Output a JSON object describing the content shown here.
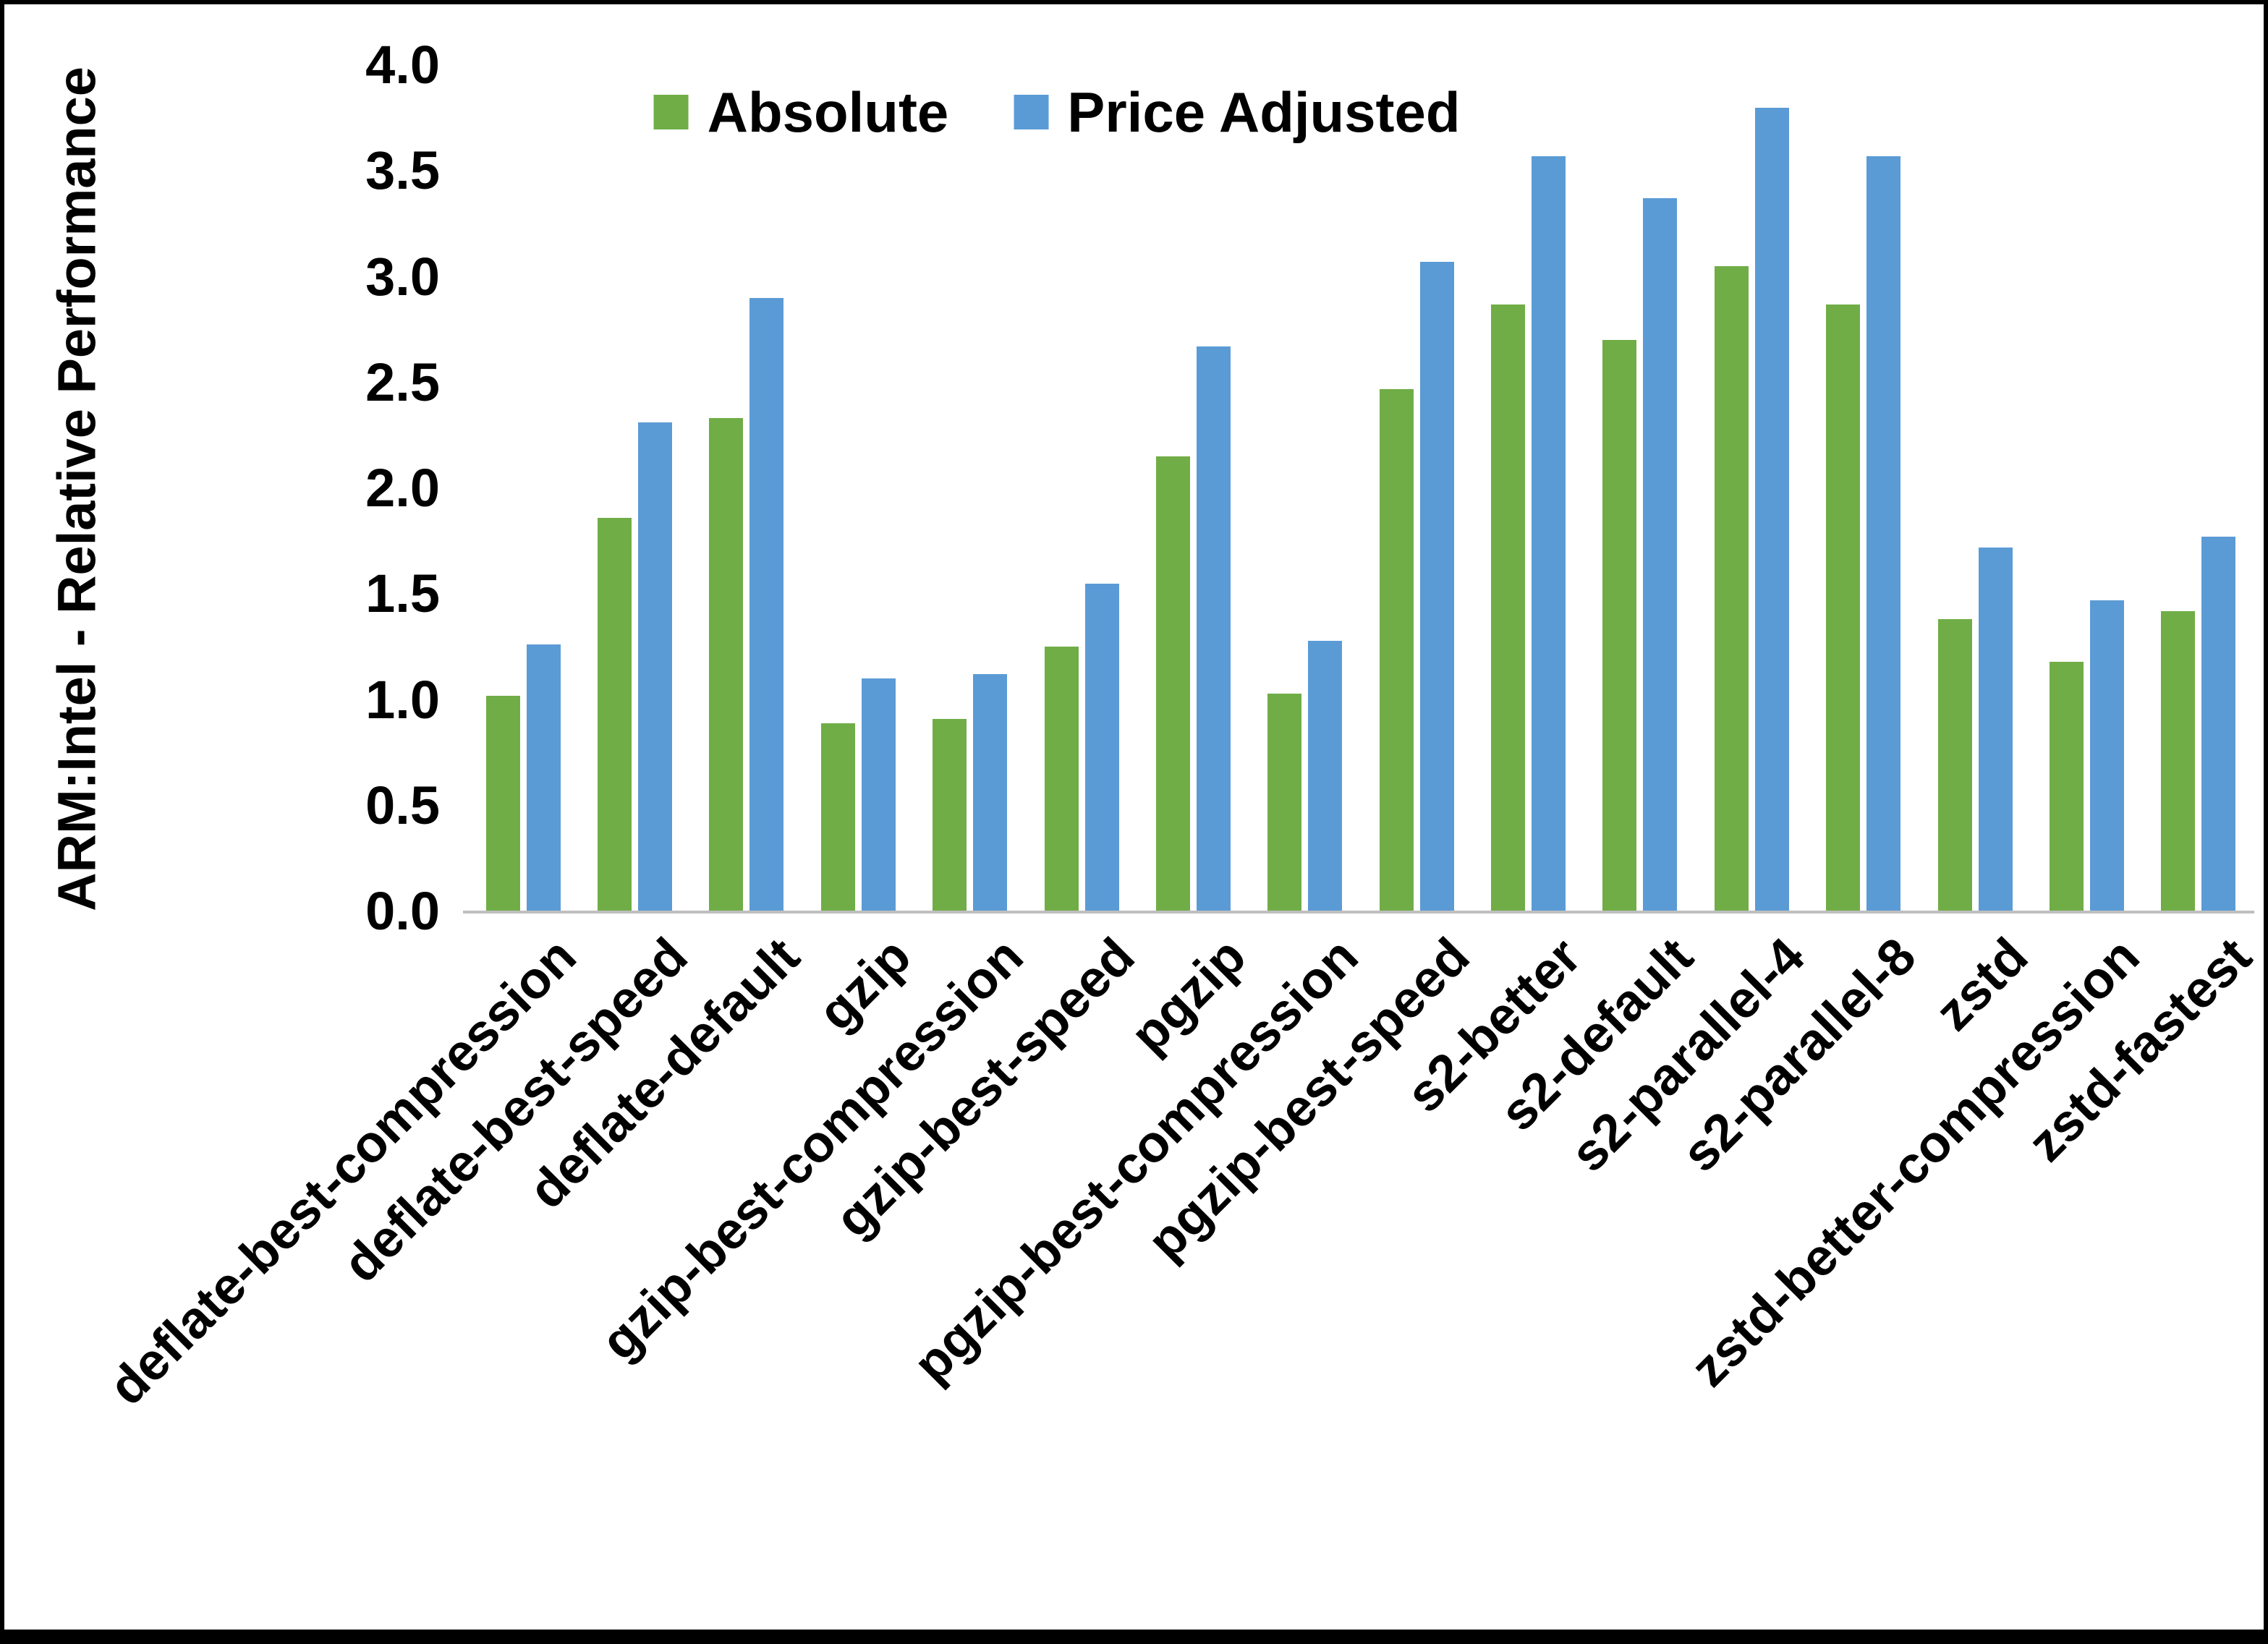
{
  "chart_data": {
    "type": "bar",
    "title": "",
    "ylabel": "ARM:Intel - Relative Performance",
    "xlabel": "",
    "ylim": [
      0,
      4.0
    ],
    "ytick_step": 0.5,
    "yticks": [
      "0.0",
      "0.5",
      "1.0",
      "1.5",
      "2.0",
      "2.5",
      "3.0",
      "3.5",
      "4.0"
    ],
    "grid": false,
    "legend_position": "top",
    "categories": [
      "deflate-best-compression",
      "deflate-best-speed",
      "deflate-default",
      "gzip",
      "gzip-best-compression",
      "gzip-best-speed",
      "pgzip",
      "pgzip-best-compression",
      "pgzip-best-speed",
      "s2-better",
      "s2-default",
      "s2-parallel-4",
      "s2-parallel-8",
      "zstd",
      "zstd-better-compression",
      "zstd-fastest"
    ],
    "series": [
      {
        "name": "Absolute",
        "color": "#70AD47",
        "values": [
          1.02,
          1.86,
          2.33,
          0.89,
          0.91,
          1.25,
          2.15,
          1.03,
          2.47,
          2.87,
          2.7,
          3.05,
          2.87,
          1.38,
          1.18,
          1.42
        ]
      },
      {
        "name": "Price Adjusted",
        "color": "#5B9BD5",
        "values": [
          1.26,
          2.31,
          2.9,
          1.1,
          1.12,
          1.55,
          2.67,
          1.28,
          3.07,
          3.57,
          3.37,
          3.8,
          3.57,
          1.72,
          1.47,
          1.77
        ]
      }
    ]
  },
  "colors": {
    "background": "#FFFFFF",
    "border": "#000000",
    "axis_line": "#BFBFBF",
    "text": "#000000"
  }
}
